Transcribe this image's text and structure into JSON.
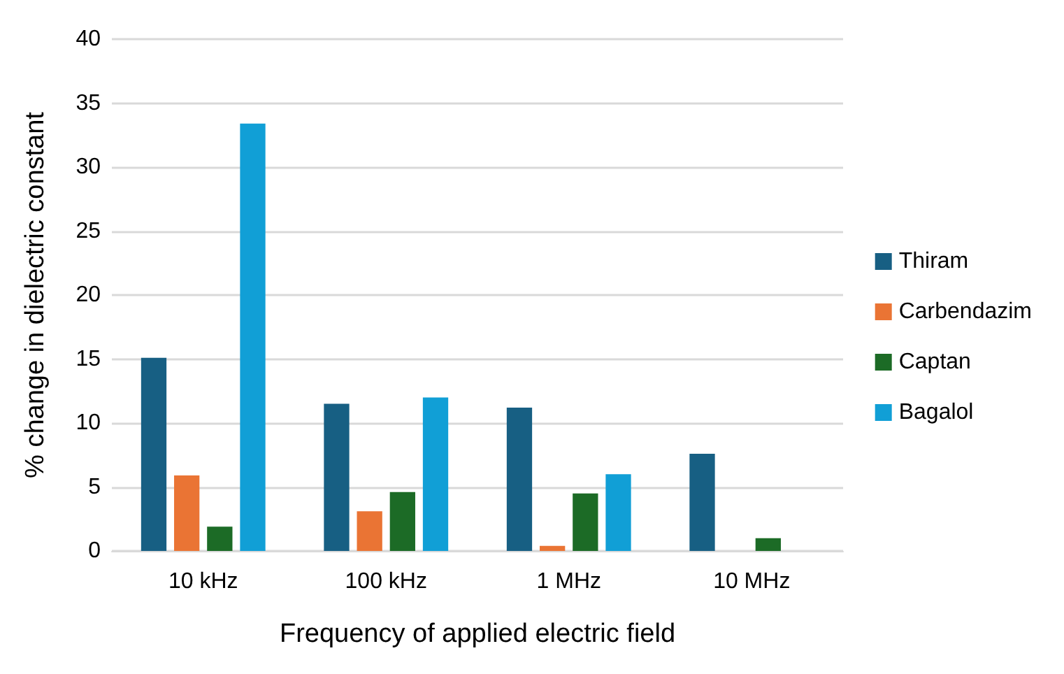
{
  "chart_data": {
    "type": "bar",
    "xlabel": "Frequency of applied electric field",
    "ylabel": "% change in dielectric constant",
    "categories": [
      "10 kHz",
      "100 kHz",
      "1 MHz",
      "10 MHz"
    ],
    "series": [
      {
        "name": "Thiram",
        "color": "#175f83",
        "values": [
          15.1,
          11.5,
          11.2,
          7.6
        ]
      },
      {
        "name": "Carbendazim",
        "color": "#ea7434",
        "values": [
          5.9,
          3.1,
          0.4,
          0
        ]
      },
      {
        "name": "Captan",
        "color": "#1c6b26",
        "values": [
          1.9,
          4.6,
          4.5,
          1.0
        ]
      },
      {
        "name": "Bagalol",
        "color": "#119fd6",
        "values": [
          33.4,
          12,
          6,
          0
        ]
      }
    ],
    "ylim": [
      0,
      40
    ],
    "yticks": [
      0,
      5,
      10,
      15,
      20,
      25,
      30,
      35,
      40
    ],
    "grid": "y",
    "legend": "right"
  }
}
